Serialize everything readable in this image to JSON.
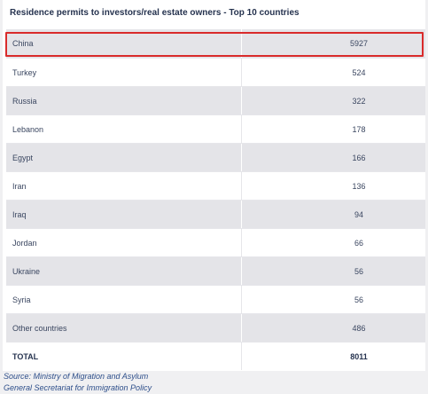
{
  "table": {
    "title": "Residence permits to investors/real estate owners - Top 10 countries",
    "rows": [
      {
        "country": "China",
        "value": "5927"
      },
      {
        "country": "Turkey",
        "value": "524"
      },
      {
        "country": "Russia",
        "value": "322"
      },
      {
        "country": "Lebanon",
        "value": "178"
      },
      {
        "country": "Egypt",
        "value": "166"
      },
      {
        "country": "Iran",
        "value": "136"
      },
      {
        "country": "Iraq",
        "value": "94"
      },
      {
        "country": "Jordan",
        "value": "66"
      },
      {
        "country": "Ukraine",
        "value": "56"
      },
      {
        "country": "Syria",
        "value": "56"
      },
      {
        "country": "Other countries",
        "value": "486"
      }
    ],
    "total": {
      "label": "TOTAL",
      "value": "8011"
    }
  },
  "source": {
    "line1": "Source: Ministry of Migration and Asylum",
    "line2": "General Secretariat for Immigration Policy"
  },
  "colors": {
    "highlight_border": "#d92b2b",
    "row_shade": "#e4e4e8",
    "source_text": "#2d4e8a"
  }
}
